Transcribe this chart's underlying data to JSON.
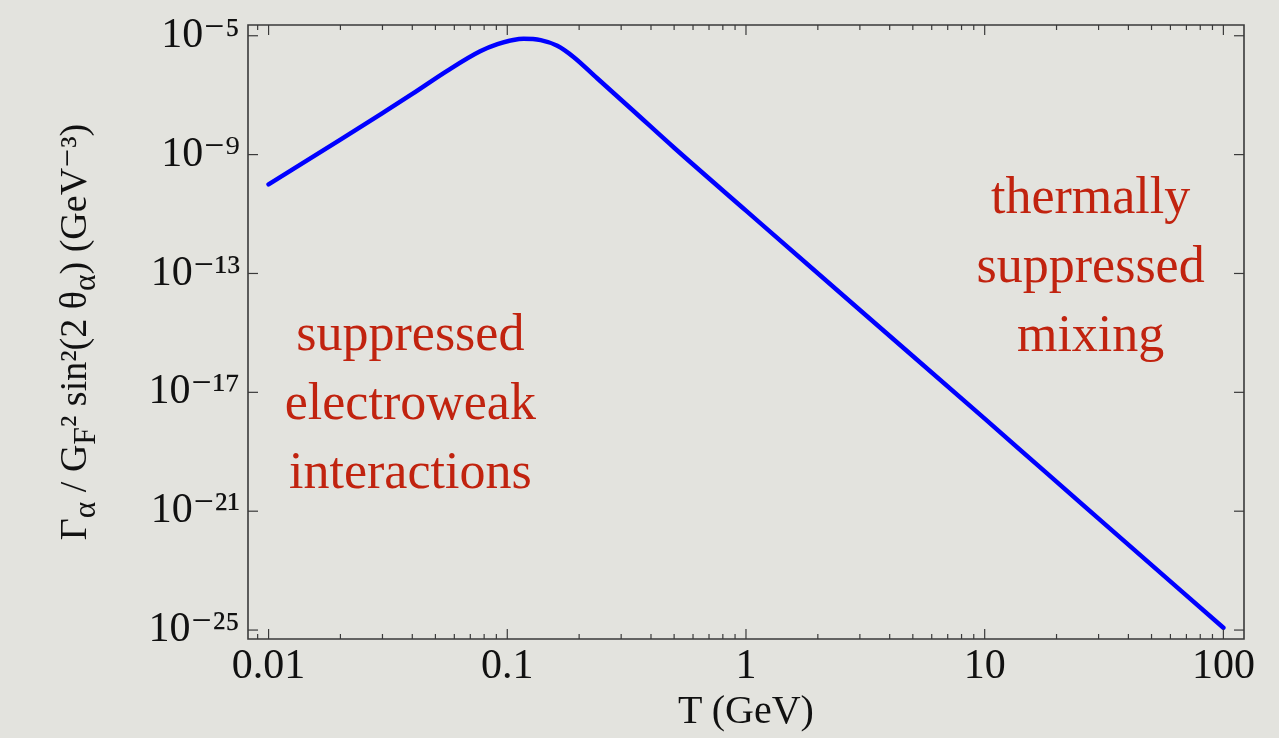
{
  "chart_data": {
    "type": "line",
    "xlabel": "T (GeV)",
    "ylabel": "Γ$_{α}$ / G$_{F}$² sin²(2 θ$_{α}$)  (GeV⁻³)",
    "annotations": [
      "suppressed electroweak interactions",
      "thermally suppressed mixing"
    ],
    "x": [
      0.01,
      0.02,
      0.03,
      0.04,
      0.056,
      0.077,
      0.091,
      0.106,
      0.117,
      0.138,
      0.162,
      0.19,
      0.238,
      0.33,
      0.5,
      1,
      3,
      10,
      30,
      100
    ],
    "series": [
      {
        "color": "#0000ff",
        "values": [
          1e-10,
          3.2e-09,
          2.5e-08,
          1.1e-07,
          6.6e-07,
          3e-06,
          5.2e-06,
          7.2e-06,
          7.9e-06,
          7.1e-06,
          4.6e-06,
          1.9e-06,
          3.7e-07,
          3.5e-08,
          1.7e-09,
          1.3e-11,
          5.9e-15,
          1.3e-18,
          5.6e-22,
          1.2e-25
        ]
      }
    ],
    "log": "xy",
    "xlim": [
      0.0082,
      122
    ],
    "ylim": [
      5e-26,
      2.3e-05
    ],
    "xticks": [
      {
        "value": 0.009,
        "label": null
      },
      0.01,
      {
        "value": 0.02,
        "label": null
      },
      {
        "value": 0.03,
        "label": null
      },
      {
        "value": 0.04,
        "label": null
      },
      {
        "value": 0.05,
        "label": null
      },
      {
        "value": 0.06,
        "label": null
      },
      {
        "value": 0.07,
        "label": null
      },
      {
        "value": 0.08,
        "label": null
      },
      {
        "value": 0.09,
        "label": null
      },
      0.1,
      {
        "value": 0.2,
        "label": null
      },
      {
        "value": 0.3,
        "label": null
      },
      {
        "value": 0.4,
        "label": null
      },
      {
        "value": 0.5,
        "label": null
      },
      {
        "value": 0.6,
        "label": null
      },
      {
        "value": 0.7,
        "label": null
      },
      {
        "value": 0.8,
        "label": null
      },
      {
        "value": 0.9,
        "label": null
      },
      1,
      {
        "value": 2,
        "label": null
      },
      {
        "value": 3,
        "label": null
      },
      {
        "value": 4,
        "label": null
      },
      {
        "value": 5,
        "label": null
      },
      {
        "value": 6,
        "label": null
      },
      {
        "value": 7,
        "label": null
      },
      {
        "value": 8,
        "label": null
      },
      {
        "value": 9,
        "label": null
      },
      10,
      {
        "value": 20,
        "label": null
      },
      {
        "value": 30,
        "label": null
      },
      {
        "value": 40,
        "label": null
      },
      {
        "value": 50,
        "label": null
      },
      {
        "value": 60,
        "label": null
      },
      {
        "value": 70,
        "label": null
      },
      {
        "value": 80,
        "label": null
      },
      {
        "value": 90,
        "label": null
      },
      100
    ],
    "yticks": [
      {
        "value": 1e-25,
        "label": "10⁻²⁵"
      },
      {
        "value": 1e-21,
        "label": "10⁻²¹"
      },
      {
        "value": 1e-17,
        "label": "10⁻¹⁷"
      },
      {
        "value": 1e-13,
        "label": "10⁻¹³"
      },
      {
        "value": 1e-09,
        "label": "10⁻⁹"
      },
      {
        "value": 1e-05,
        "label": "10⁻⁵"
      }
    ],
    "marker": "none"
  }
}
